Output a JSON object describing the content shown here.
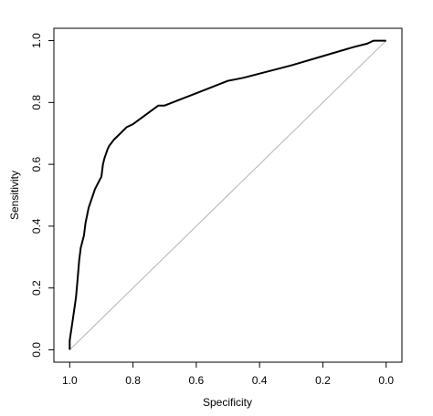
{
  "chart_data": {
    "type": "line",
    "title": "",
    "xlabel": "Specificity",
    "ylabel": "Sensitivity",
    "xlim": [
      1.05,
      -0.05
    ],
    "ylim": [
      -0.04,
      1.04
    ],
    "x_reversed": true,
    "grid": false,
    "legend": "none",
    "xticks": [
      1.0,
      0.8,
      0.6,
      0.4,
      0.2,
      0.0
    ],
    "xtick_labels": [
      "1.0",
      "0.8",
      "0.6",
      "0.4",
      "0.2",
      "0.0"
    ],
    "yticks": [
      0.0,
      0.2,
      0.4,
      0.6,
      0.8,
      1.0
    ],
    "ytick_labels": [
      "0.0",
      "0.2",
      "0.4",
      "0.6",
      "0.8",
      "1.0"
    ],
    "reference_line": {
      "from": [
        1.0,
        0.0
      ],
      "to": [
        0.0,
        1.0
      ],
      "color": "#b3b3b3"
    },
    "series": [
      {
        "color": "#000000",
        "x": [
          1.0,
          1.0,
          0.99,
          0.98,
          0.975,
          0.97,
          0.965,
          0.955,
          0.95,
          0.94,
          0.92,
          0.9,
          0.895,
          0.89,
          0.88,
          0.875,
          0.86,
          0.85,
          0.83,
          0.82,
          0.8,
          0.76,
          0.72,
          0.7,
          0.65,
          0.6,
          0.5,
          0.45,
          0.3,
          0.2,
          0.1,
          0.06,
          0.04,
          0.0
        ],
        "y": [
          0.0,
          0.03,
          0.1,
          0.17,
          0.23,
          0.29,
          0.33,
          0.37,
          0.41,
          0.46,
          0.52,
          0.56,
          0.6,
          0.62,
          0.65,
          0.66,
          0.68,
          0.69,
          0.71,
          0.72,
          0.73,
          0.76,
          0.79,
          0.79,
          0.81,
          0.83,
          0.87,
          0.88,
          0.92,
          0.95,
          0.98,
          0.99,
          1.0,
          1.0
        ]
      }
    ]
  }
}
